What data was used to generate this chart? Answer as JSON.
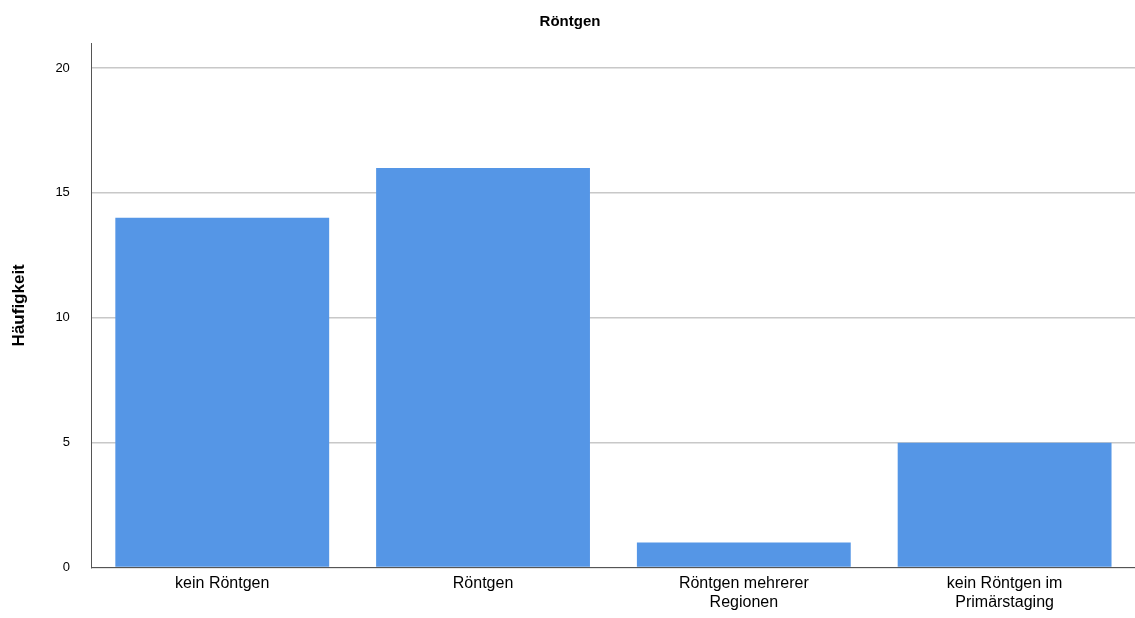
{
  "chart_data": {
    "type": "bar",
    "title": "Röntgen",
    "ylabel": "Häufigkeit",
    "categories": [
      "kein Röntgen",
      "Röntgen",
      "Röntgen mehrerer Regionen",
      "kein Röntgen im Primärstaging"
    ],
    "values": [
      14,
      16,
      1,
      5
    ],
    "color": "#5596e6",
    "ylim": [
      0,
      21
    ],
    "yticks": [
      0,
      5,
      10,
      15,
      20
    ],
    "grid": "y",
    "legend": false
  }
}
